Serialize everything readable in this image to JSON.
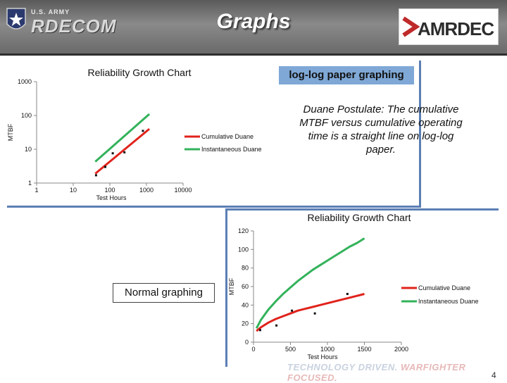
{
  "header": {
    "title": "Graphs",
    "army_small": "U.S. ARMY",
    "army_brand": "RDECOM",
    "amrdec_logo": "AMRDEC",
    "colors": {
      "header_gray": "#7a7a7a",
      "panel_border": "#5b7fb4",
      "label_blue": "#7fa8d6"
    }
  },
  "labels": {
    "loglog": "log-log paper graphing",
    "postulate": "Duane Postulate: The cumulative MTBF versus cumulative operating time is a straight line on log-log paper.",
    "normal": "Normal graphing"
  },
  "footer": {
    "part1": "TECHNOLOGY DRIVEN.",
    "part2": "WARFIGHTER FOCUSED.",
    "page": "4"
  },
  "chart_data": [
    {
      "type": "line",
      "scale": "log-log",
      "title": "Reliability Growth Chart",
      "xlabel": "Test Hours",
      "ylabel": "MTBF",
      "xlim": [
        1,
        10000
      ],
      "ylim": [
        1,
        1000
      ],
      "x_ticks": [
        "1",
        "10",
        "100",
        "1000",
        "10000"
      ],
      "y_ticks": [
        "1",
        "10",
        "100",
        "1000"
      ],
      "legend_position": "right",
      "series": [
        {
          "name": "Cumulative Duane",
          "color": "#e0231c",
          "x": [
            40,
            1200
          ],
          "y": [
            1.9,
            40
          ]
        },
        {
          "name": "Instantaneous Duane",
          "color": "#33b25b",
          "x": [
            40,
            1200
          ],
          "y": [
            4.3,
            110
          ]
        }
      ],
      "points": {
        "x": [
          42,
          75,
          120,
          250,
          800
        ],
        "y": [
          1.7,
          3.0,
          7.6,
          8.1,
          35
        ]
      }
    },
    {
      "type": "line",
      "title": "Reliability Growth Chart",
      "xlabel": "Test Hours",
      "ylabel": "MTBF",
      "xlim": [
        0,
        2000
      ],
      "ylim": [
        0,
        120
      ],
      "x_ticks": [
        "0",
        "500",
        "1000",
        "1500",
        "2000"
      ],
      "y_ticks": [
        "0",
        "20",
        "40",
        "60",
        "80",
        "100",
        "120"
      ],
      "legend_position": "right",
      "series": [
        {
          "name": "Cumulative Duane",
          "color": "#e0231c",
          "x": [
            40,
            100,
            200,
            300,
            400,
            500,
            600,
            700,
            800,
            900,
            1000,
            1100,
            1200,
            1300,
            1400,
            1500
          ],
          "y": [
            12,
            16,
            21,
            25,
            28,
            31,
            34,
            36,
            38,
            40,
            42,
            44,
            46,
            48,
            50,
            52
          ]
        },
        {
          "name": "Instantaneous Duane",
          "color": "#33b25b",
          "x": [
            40,
            100,
            200,
            300,
            400,
            500,
            600,
            700,
            800,
            900,
            1000,
            1100,
            1200,
            1300,
            1400,
            1500
          ],
          "y": [
            15,
            24,
            35,
            44,
            52,
            59,
            66,
            72,
            78,
            83,
            88,
            93,
            98,
            103,
            107,
            112
          ]
        }
      ],
      "points": {
        "x": [
          90,
          310,
          520,
          830,
          1270
        ],
        "y": [
          13,
          18,
          34,
          31,
          52
        ]
      }
    }
  ]
}
